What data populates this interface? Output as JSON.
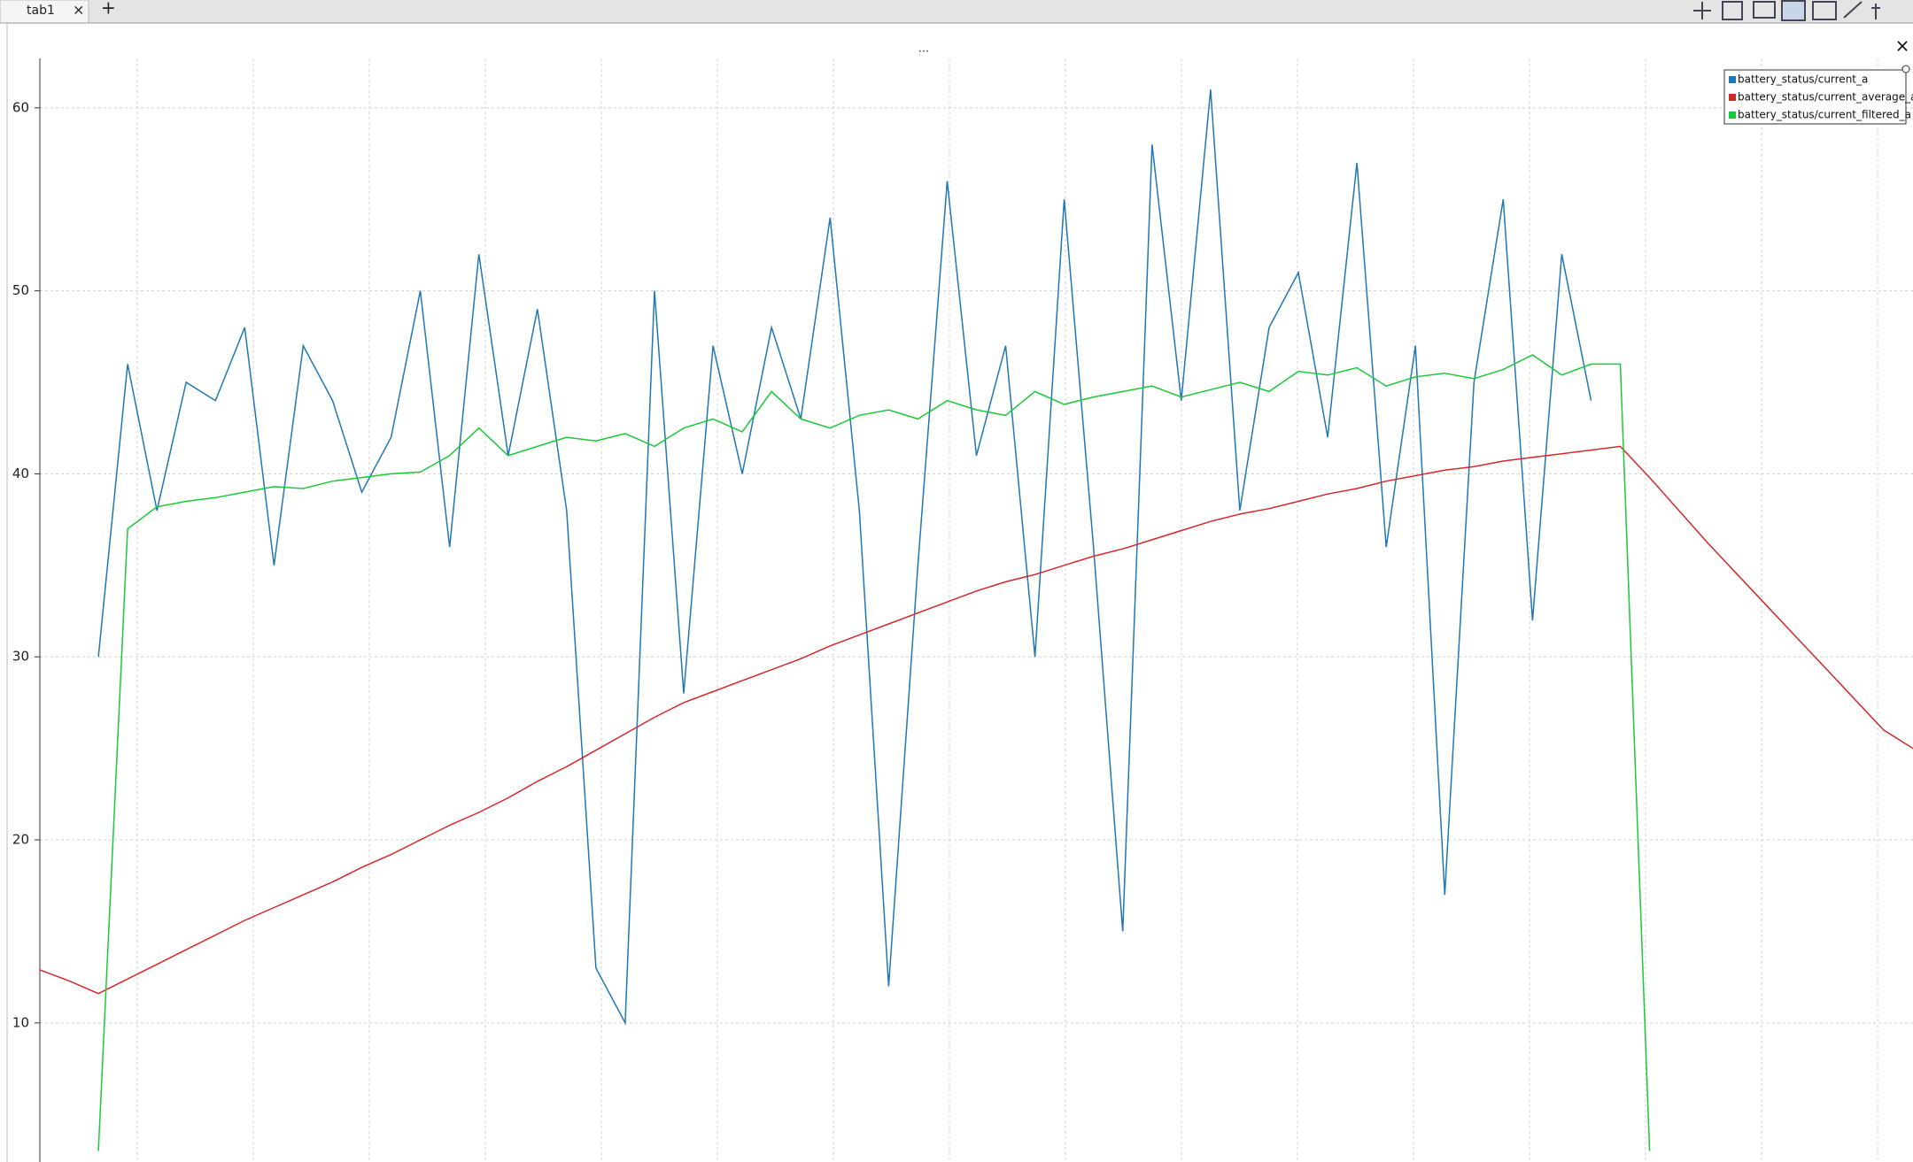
{
  "ui": {
    "tab": "tab1",
    "tab_close": "×",
    "tab_add": "+",
    "plot_title": "...",
    "plot_close": "×"
  },
  "chart_data": {
    "type": "line",
    "series": [
      {
        "name": "battery_status/current_a",
        "color": "#1f77b4",
        "values": [
          null,
          null,
          30,
          46,
          38,
          45,
          44,
          48,
          35,
          47,
          44,
          39,
          42,
          50,
          36,
          52,
          41,
          49,
          38,
          13,
          10,
          50,
          28,
          47,
          40,
          48,
          43,
          54,
          38,
          12,
          35,
          56,
          41,
          47,
          30,
          55,
          36,
          15,
          58,
          44,
          61,
          38,
          48,
          51,
          42,
          57,
          36,
          47,
          17,
          45,
          55,
          32,
          52,
          44,
          null,
          null,
          null,
          null,
          null,
          null,
          null,
          null,
          null,
          null,
          null
        ]
      },
      {
        "name": "battery_status/current_average_a",
        "color": "#d62728",
        "values": [
          12.9,
          12.3,
          11.6,
          12.4,
          13.2,
          14,
          14.8,
          15.6,
          16.3,
          17,
          17.7,
          18.5,
          19.2,
          20,
          20.8,
          21.5,
          22.3,
          23.2,
          24,
          24.9,
          25.8,
          26.7,
          27.5,
          28.1,
          28.7,
          29.3,
          29.9,
          30.6,
          31.2,
          31.8,
          32.4,
          33,
          33.6,
          34.1,
          34.5,
          35,
          35.5,
          35.9,
          36.4,
          36.9,
          37.4,
          37.8,
          38.1,
          38.5,
          38.9,
          39.2,
          39.6,
          39.9,
          40.2,
          40.4,
          40.7,
          40.9,
          41.1,
          41.3,
          41.5,
          39.8,
          38,
          36.2,
          34.5,
          32.8,
          31.1,
          29.4,
          27.7,
          26,
          25
        ]
      },
      {
        "name": "battery_status/current_filtered_a",
        "color": "#1ac938",
        "values": [
          null,
          null,
          3,
          37,
          38.2,
          38.5,
          38.7,
          39,
          39.3,
          39.2,
          39.6,
          39.8,
          40,
          40.1,
          41,
          42.5,
          41,
          41.5,
          42,
          41.8,
          42.2,
          41.5,
          42.5,
          43,
          42.3,
          44.5,
          43,
          42.5,
          43.2,
          43.5,
          43,
          44,
          43.5,
          43.2,
          44.5,
          43.8,
          44.2,
          44.5,
          44.8,
          44.2,
          44.6,
          45,
          44.5,
          45.6,
          45.4,
          45.8,
          44.8,
          45.3,
          45.5,
          45.2,
          45.7,
          46.5,
          45.4,
          46,
          46,
          3,
          null,
          null,
          null,
          null,
          null,
          null,
          null,
          null,
          null
        ]
      }
    ],
    "ylim": [
      2.4,
      62.7
    ],
    "yticks": [
      10,
      20,
      30,
      40,
      50,
      60
    ],
    "grid": true
  }
}
